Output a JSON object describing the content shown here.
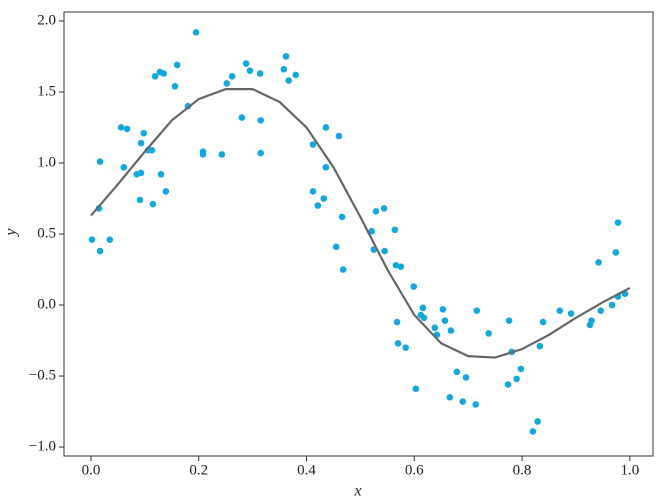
{
  "chart_data": {
    "type": "scatter",
    "x_label": "x",
    "y_label": "y",
    "xlim": [
      -0.05,
      1.043
    ],
    "ylim": [
      -1.063,
      2.063
    ],
    "xticks": [
      {
        "value": 0,
        "label": "0.0"
      },
      0.2,
      0.4,
      0.6,
      0.8,
      {
        "value": 1,
        "label": "1.0"
      }
    ],
    "yticks": [
      {
        "value": -1,
        "label": "−1.0"
      },
      {
        "value": -0.5,
        "label": "−0.5"
      },
      {
        "value": 0,
        "label": "0.0"
      },
      0.5,
      {
        "value": 1,
        "label": "1.0"
      },
      1.5,
      {
        "value": 2,
        "label": "2.0"
      }
    ],
    "series": [
      {
        "type": "scatter",
        "color": "#14a7dc",
        "x": [
          0.002,
          0.015,
          0.017,
          0.017,
          0.035,
          0.056,
          0.061,
          0.067,
          0.085,
          0.091,
          0.093,
          0.093,
          0.098,
          0.106,
          0.113,
          0.115,
          0.119,
          0.128,
          0.13,
          0.135,
          0.139,
          0.156,
          0.16,
          0.18,
          0.195,
          0.208,
          0.208,
          0.243,
          0.252,
          0.262,
          0.28,
          0.288,
          0.295,
          0.315,
          0.315,
          0.314,
          0.358,
          0.362,
          0.367,
          0.38,
          0.412,
          0.412,
          0.421,
          0.432,
          0.436,
          0.436,
          0.455,
          0.46,
          0.466,
          0.468,
          0.521,
          0.525,
          0.529,
          0.544,
          0.545,
          0.564,
          0.566,
          0.568,
          0.57,
          0.575,
          0.584,
          0.599,
          0.603,
          0.612,
          0.616,
          0.618,
          0.638,
          0.642,
          0.653,
          0.657,
          0.666,
          0.668,
          0.679,
          0.69,
          0.696,
          0.714,
          0.716,
          0.738,
          0.776,
          0.774,
          0.781,
          0.79,
          0.798,
          0.82,
          0.829,
          0.833,
          0.839,
          0.87,
          0.891,
          0.926,
          0.929,
          0.942,
          0.946,
          0.967,
          0.974,
          0.978,
          0.978,
          0.991
        ],
        "values": [
          0.46,
          0.68,
          1.01,
          0.38,
          0.46,
          1.25,
          0.97,
          1.24,
          0.92,
          0.74,
          1.14,
          0.93,
          1.21,
          1.09,
          1.09,
          0.71,
          1.61,
          1.64,
          0.92,
          1.63,
          0.8,
          1.54,
          1.69,
          1.4,
          1.92,
          1.08,
          1.06,
          1.06,
          1.56,
          1.61,
          1.32,
          1.7,
          1.65,
          1.3,
          1.07,
          1.63,
          1.66,
          1.75,
          1.58,
          1.62,
          1.13,
          0.8,
          0.7,
          0.75,
          0.97,
          1.25,
          0.41,
          1.19,
          0.62,
          0.25,
          0.52,
          0.39,
          0.66,
          0.68,
          0.38,
          0.53,
          0.28,
          -0.12,
          -0.27,
          0.27,
          -0.3,
          0.13,
          -0.59,
          -0.07,
          -0.02,
          -0.09,
          -0.16,
          -0.21,
          -0.03,
          -0.11,
          -0.65,
          -0.18,
          -0.47,
          -0.68,
          -0.51,
          -0.7,
          -0.04,
          -0.2,
          -0.11,
          -0.56,
          -0.33,
          -0.52,
          -0.45,
          -0.89,
          -0.82,
          -0.29,
          -0.12,
          -0.04,
          -0.06,
          -0.14,
          -0.11,
          0.3,
          -0.04,
          0,
          0.37,
          0.58,
          0.06,
          0.08
        ]
      },
      {
        "type": "line",
        "color": "#666666",
        "x": [
          0,
          0.05,
          0.1,
          0.15,
          0.2,
          0.25,
          0.3,
          0.35,
          0.4,
          0.45,
          0.5,
          0.55,
          0.6,
          0.65,
          0.7,
          0.75,
          0.8,
          0.85,
          0.9,
          0.95,
          1
        ],
        "values": [
          0.63,
          0.85,
          1.08,
          1.3,
          1.45,
          1.52,
          1.52,
          1.43,
          1.25,
          0.97,
          0.62,
          0.25,
          -0.07,
          -0.27,
          -0.36,
          -0.37,
          -0.31,
          -0.21,
          -0.09,
          0.02,
          0.12
        ]
      }
    ]
  }
}
